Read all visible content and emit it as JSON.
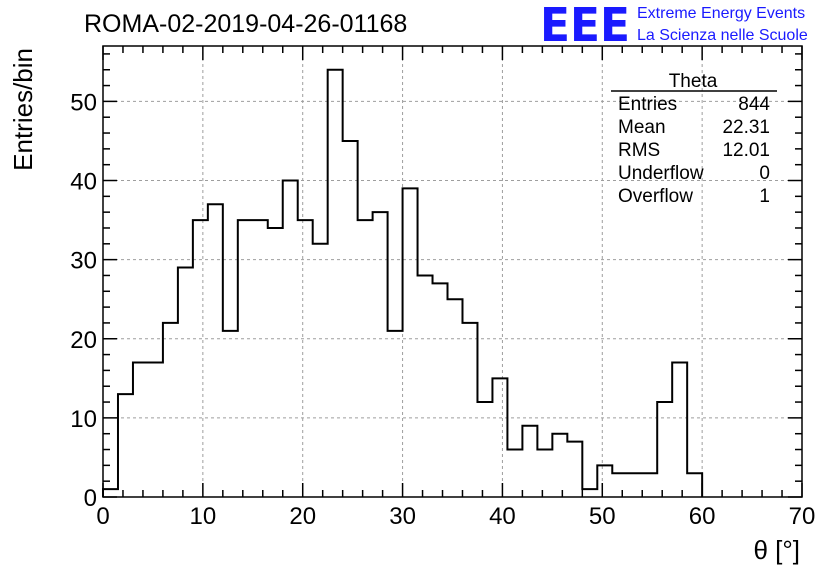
{
  "header": {
    "run_title": "ROMA-02-2019-04-26-01168",
    "logo_mark": "EEE",
    "logo_line1": "Extreme Energy Events",
    "logo_line2": "La Scienza nelle Scuole"
  },
  "stats_box": {
    "name": "Theta",
    "rows": [
      {
        "label": "Entries",
        "value": "844"
      },
      {
        "label": "Mean",
        "value": "22.31"
      },
      {
        "label": "RMS",
        "value": "12.01"
      },
      {
        "label": "Underflow",
        "value": "0"
      },
      {
        "label": "Overflow",
        "value": "1"
      }
    ]
  },
  "colors": {
    "line": "#000000",
    "grid": "#9e9e9e",
    "logo": "#1a1aff"
  },
  "chart_data": {
    "type": "bar",
    "histogram": true,
    "xlabel": "θ [°]",
    "ylabel": "Entries/bin",
    "xlim": [
      0,
      70
    ],
    "ylim": [
      0,
      57
    ],
    "bin_width": 1.5,
    "bin_start": 0,
    "values": [
      1,
      13,
      17,
      17,
      22,
      29,
      35,
      37,
      21,
      35,
      35,
      34,
      40,
      35,
      32,
      54,
      45,
      35,
      36,
      21,
      39,
      28,
      27,
      25,
      22,
      12,
      15,
      6,
      9,
      6,
      8,
      7,
      1,
      4,
      3,
      3,
      3,
      12,
      17,
      3
    ],
    "x_ticks": [
      0,
      10,
      20,
      30,
      40,
      50,
      60,
      70
    ],
    "x_tick_labels": [
      "0",
      "10",
      "20",
      "30",
      "40",
      "50",
      "60",
      "70"
    ],
    "y_ticks": [
      0,
      10,
      20,
      30,
      40,
      50
    ],
    "y_tick_labels": [
      "0",
      "10",
      "20",
      "30",
      "40",
      "50"
    ],
    "grid": true
  }
}
